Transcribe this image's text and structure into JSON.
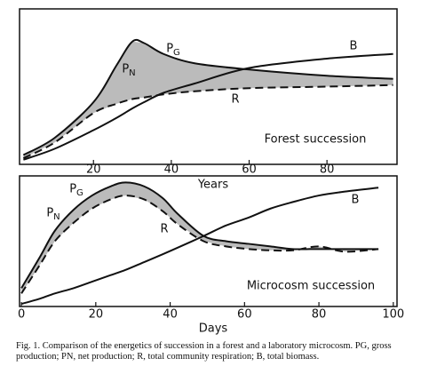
{
  "chart_data": [
    {
      "type": "line",
      "x_label": "Years",
      "annotation": "Forest succession",
      "shaded_label": "PN",
      "xlim": [
        1,
        98
      ],
      "ylim": [
        0,
        100
      ],
      "xticks": [
        20,
        40,
        60,
        80
      ],
      "x": [
        2,
        10,
        20,
        26,
        30,
        33,
        38,
        46,
        60,
        80,
        97
      ],
      "series": [
        {
          "name": "PG",
          "color": "#111111",
          "style": "solid",
          "values": [
            6,
            17,
            40,
            64,
            79,
            78,
            71,
            65,
            61,
            57,
            55
          ]
        },
        {
          "name": "R",
          "color": "#111111",
          "style": "dashed",
          "values": [
            4,
            14,
            33,
            39,
            42,
            43,
            45,
            47,
            49,
            50,
            51
          ]
        },
        {
          "name": "B",
          "color": "#111111",
          "style": "solid",
          "values": [
            3,
            10,
            22,
            30,
            36,
            40,
            46,
            52,
            62,
            68,
            71
          ]
        }
      ]
    },
    {
      "type": "line",
      "x_label": "Days",
      "annotation": "Microcosm succession",
      "shaded_label": "PN",
      "xlim": [
        -0.5,
        101
      ],
      "ylim": [
        0,
        100
      ],
      "xticks": [
        0,
        20,
        40,
        60,
        80,
        100
      ],
      "x": [
        0,
        5,
        9,
        14,
        19,
        24,
        28,
        33,
        38,
        42,
        49,
        55,
        61,
        67,
        73,
        80,
        87,
        96
      ],
      "series": [
        {
          "name": "PG",
          "color": "#111111",
          "style": "solid",
          "values": [
            14,
            38,
            58,
            74,
            85,
            92,
            95,
            92,
            83,
            71,
            54,
            50,
            48,
            46,
            44,
            44,
            44,
            44
          ]
        },
        {
          "name": "R",
          "color": "#111111",
          "style": "dashed",
          "values": [
            10,
            32,
            50,
            64,
            75,
            82,
            85,
            82,
            73,
            63,
            50,
            46,
            44,
            43,
            43,
            46,
            42,
            44
          ]
        },
        {
          "name": "B",
          "color": "#111111",
          "style": "solid",
          "values": [
            2,
            6,
            10,
            14,
            19,
            24,
            28,
            34,
            40,
            45,
            54,
            62,
            68,
            75,
            80,
            85,
            88,
            91
          ]
        }
      ]
    }
  ],
  "caption": "Fig. 1. Comparison of the energetics of succession in a forest and a laboratory microcosm. PG, gross production; PN, net production; R, total community respiration; B, total biomass."
}
